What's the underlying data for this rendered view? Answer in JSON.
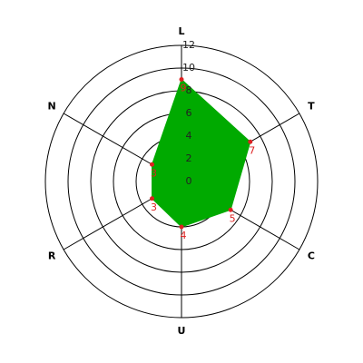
{
  "chart_data": {
    "type": "radar",
    "categories": [
      "L",
      "T",
      "C",
      "U",
      "R",
      "N"
    ],
    "values": [
      9,
      7,
      5,
      4,
      3,
      3
    ],
    "color": "#00aa00",
    "point_color": "#dd2222",
    "rlim": [
      0,
      12
    ],
    "rticks": [
      0,
      2,
      4,
      6,
      8,
      10,
      12
    ]
  }
}
